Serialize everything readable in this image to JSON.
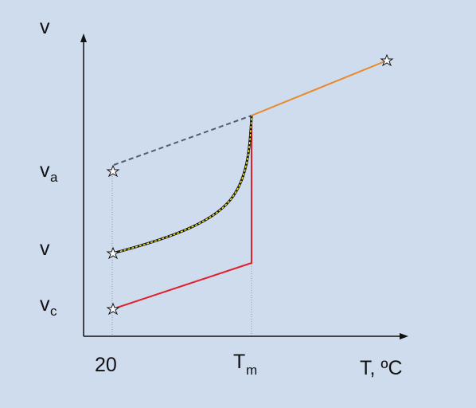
{
  "y_axis_label": "v",
  "y_labels": [
    {
      "main": "v",
      "sub": "a"
    },
    {
      "main": "v"
    },
    {
      "main": "v",
      "sub": "c"
    }
  ],
  "x_labels": [
    {
      "main": "20"
    },
    {
      "main": "T",
      "sub": "m"
    },
    {
      "main": "T, ºC"
    }
  ]
}
